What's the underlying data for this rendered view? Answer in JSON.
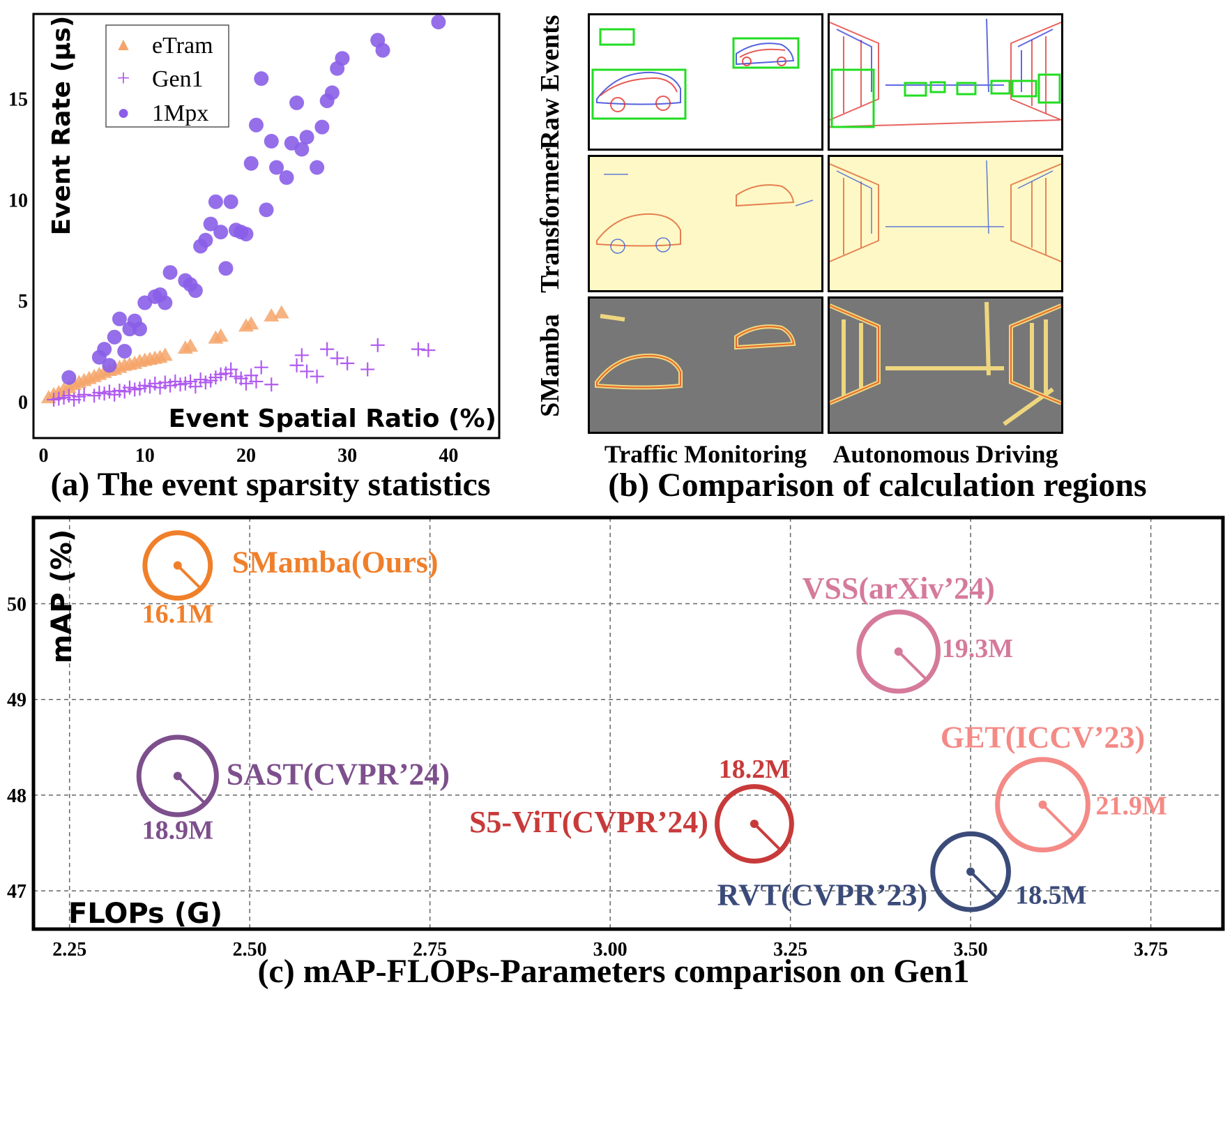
{
  "panel_a": {
    "caption": "(a) The event sparsity statistics",
    "legend_marker_glyphs": [
      "▲",
      "+",
      "●"
    ]
  },
  "panel_b": {
    "caption": "(b) Comparison of calculation regions",
    "rows": [
      "Raw Events",
      "Transformer",
      "SMamba"
    ],
    "columns": [
      "Traffic Monitoring",
      "Autonomous Driving"
    ]
  },
  "panel_c": {
    "caption": "(c) mAP-FLOPs-Parameters comparison on Gen1"
  },
  "chart_data": [
    {
      "type": "scatter",
      "xlabel": "Event Spatial Ratio (%)",
      "ylabel": "Event Rate (μs)",
      "xlim": [
        -1,
        45
      ],
      "ylim": [
        -1.8,
        19.2
      ],
      "xticks": [
        0,
        10,
        20,
        30,
        40
      ],
      "yticks": [
        0,
        5,
        10,
        15
      ],
      "legend_position": "top-left",
      "series": [
        {
          "name": "eTram",
          "marker": "triangle",
          "color": "#f4a46a",
          "x": [
            0.5,
            1,
            1.5,
            2,
            2.5,
            3,
            3.5,
            4,
            4.5,
            5,
            5.5,
            6,
            6.5,
            7,
            7.5,
            8,
            8.5,
            9,
            9.5,
            10,
            10.5,
            11,
            11.5,
            12,
            14,
            14.5,
            17,
            17.5,
            20,
            20.5,
            22.5,
            23.5
          ],
          "y": [
            0.2,
            0.35,
            0.45,
            0.6,
            0.7,
            0.85,
            0.95,
            1.05,
            1.15,
            1.25,
            1.35,
            1.45,
            1.55,
            1.6,
            1.7,
            1.8,
            1.85,
            1.9,
            2.0,
            2.05,
            2.1,
            2.15,
            2.2,
            2.3,
            2.65,
            2.75,
            3.15,
            3.25,
            3.75,
            3.85,
            4.25,
            4.4
          ]
        },
        {
          "name": "Gen1",
          "marker": "plus",
          "color": "#b05af0",
          "x": [
            1,
            1.5,
            2,
            2.5,
            3,
            3.5,
            4,
            5,
            5.5,
            6,
            6.5,
            7,
            7.5,
            8,
            8.5,
            9,
            9.5,
            10,
            10.5,
            11,
            11.5,
            12,
            12.5,
            13,
            13.5,
            14,
            14.5,
            15,
            15.5,
            16,
            16.5,
            17,
            17.5,
            18,
            18.5,
            19,
            19.5,
            20,
            20.5,
            21,
            21.5,
            22.5,
            25,
            25.5,
            26,
            27,
            28,
            29,
            30,
            32,
            33,
            37,
            38
          ],
          "y": [
            0.1,
            0.15,
            0.2,
            0.3,
            0.1,
            0.25,
            0.35,
            0.3,
            0.45,
            0.4,
            0.5,
            0.35,
            0.55,
            0.5,
            0.7,
            0.6,
            0.65,
            0.8,
            0.75,
            0.9,
            0.7,
            0.95,
            0.8,
            1.0,
            0.85,
            0.9,
            1.0,
            0.75,
            1.1,
            0.95,
            1.05,
            1.2,
            1.35,
            1.4,
            1.6,
            1.25,
            1.15,
            0.9,
            1.3,
            1.0,
            1.7,
            0.85,
            1.8,
            2.3,
            1.5,
            1.25,
            2.6,
            2.15,
            1.9,
            1.6,
            2.8,
            2.6,
            2.55
          ]
        },
        {
          "name": "1Mpx",
          "marker": "circle",
          "color": "#8a5ee8",
          "x": [
            2.5,
            5.5,
            6,
            6.5,
            7,
            7.5,
            8,
            8.5,
            9,
            9.5,
            10,
            11,
            11.5,
            12,
            12.5,
            14,
            14.5,
            15,
            15.5,
            16,
            16.5,
            17,
            17.5,
            18,
            18.5,
            19,
            19.5,
            20,
            20.5,
            21,
            21.5,
            22,
            22.5,
            23,
            24,
            24.5,
            25,
            25.5,
            26,
            27,
            27.5,
            28,
            28.5,
            29,
            29.5,
            33,
            33.5,
            39
          ],
          "y": [
            1.2,
            2.2,
            2.6,
            1.8,
            3.2,
            4.1,
            2.5,
            3.6,
            4.0,
            3.6,
            4.9,
            5.2,
            5.3,
            4.9,
            6.4,
            6.0,
            5.8,
            5.5,
            7.7,
            8.0,
            8.8,
            9.9,
            8.4,
            6.6,
            9.9,
            8.5,
            8.4,
            8.3,
            11.8,
            13.7,
            16.0,
            9.5,
            12.9,
            11.6,
            11.1,
            12.8,
            14.8,
            12.5,
            13.1,
            11.6,
            13.6,
            14.9,
            15.3,
            16.5,
            17.0,
            17.9,
            17.4,
            18.8
          ]
        }
      ]
    },
    {
      "type": "scatter",
      "xlabel": "FLOPs (G)",
      "ylabel": "mAP (%)",
      "xlim": [
        2.2,
        3.85
      ],
      "ylim": [
        46.6,
        50.9
      ],
      "xticks": [
        "2.25",
        "2.50",
        "2.75",
        "3.00",
        "3.25",
        "3.50",
        "3.75"
      ],
      "yticks": [
        "47",
        "48",
        "49",
        "50"
      ],
      "grid": true,
      "point_size_encodes": "Parameters",
      "points": [
        {
          "name": "SMamba(Ours)",
          "flops": 2.4,
          "map": 50.4,
          "params": 16.1,
          "params_label": "16.1M",
          "color": "#f07f2a"
        },
        {
          "name": "VSS(arXiv’24)",
          "flops": 3.4,
          "map": 49.5,
          "params": 19.3,
          "params_label": "19.3M",
          "color": "#d57a9b"
        },
        {
          "name": "SAST(CVPR’24)",
          "flops": 2.4,
          "map": 48.2,
          "params": 18.9,
          "params_label": "18.9M",
          "color": "#7d4f8c"
        },
        {
          "name": "S5-ViT(CVPR’24)",
          "flops": 3.2,
          "map": 47.7,
          "params": 18.2,
          "params_label": "18.2M",
          "color": "#c83a3a"
        },
        {
          "name": "GET(ICCV’23)",
          "flops": 3.6,
          "map": 47.9,
          "params": 21.9,
          "params_label": "21.9M",
          "color": "#f48a86"
        },
        {
          "name": "RVT(CVPR’23)",
          "flops": 3.5,
          "map": 47.2,
          "params": 18.5,
          "params_label": "18.5M",
          "color": "#3b4b79"
        }
      ]
    }
  ]
}
